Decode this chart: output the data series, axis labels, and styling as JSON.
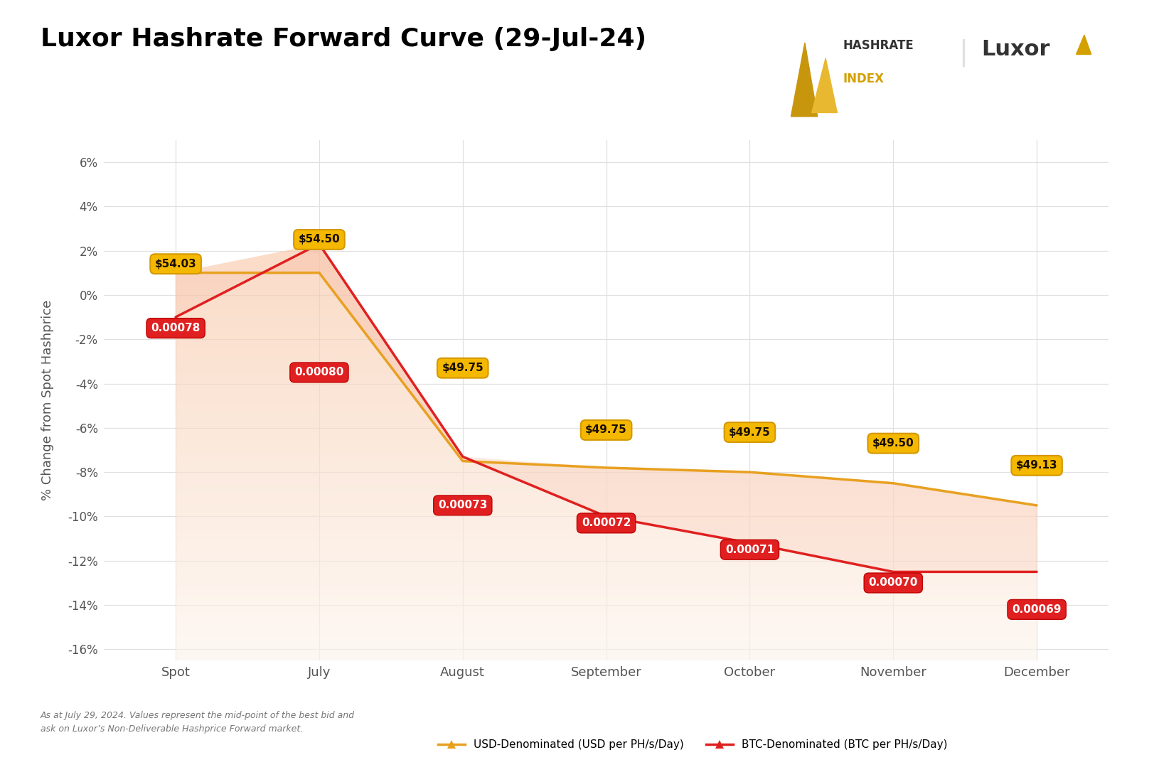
{
  "title": "Luxor Hashrate Forward Curve (29-Jul-24)",
  "ylabel": "% Change from Spot Hashprice",
  "categories": [
    "Spot",
    "July",
    "August",
    "September",
    "October",
    "November",
    "December"
  ],
  "usd_pct": [
    1.0,
    1.0,
    -7.5,
    -7.8,
    -8.0,
    -8.5,
    -9.5
  ],
  "btc_pct": [
    -1.0,
    2.3,
    -7.3,
    -10.0,
    -11.2,
    -12.5,
    -12.5
  ],
  "usd_labels": [
    "$54.03",
    "$54.50",
    "$49.75",
    "$49.75",
    "$49.75",
    "$49.50",
    "$49.13"
  ],
  "btc_labels": [
    "0.00078",
    "0.00080",
    "0.00073",
    "0.00072",
    "0.00071",
    "0.00070",
    "0.00069"
  ],
  "usd_label_y_offset": [
    1.4,
    2.5,
    -3.3,
    -6.1,
    -6.2,
    -6.7,
    -7.7
  ],
  "btc_label_y_offset": [
    -1.5,
    -3.5,
    -9.5,
    -10.3,
    -11.5,
    -13.0,
    -14.2
  ],
  "usd_color": "#E8A020",
  "btc_color": "#E02020",
  "usd_label_bg": "#F0B429",
  "fill_color_top": "#F5C5A0",
  "fill_color_bot": "#FDF0E8",
  "ylim": [
    -16.5,
    7.0
  ],
  "yticks": [
    -16,
    -14,
    -12,
    -10,
    -8,
    -6,
    -4,
    -2,
    0,
    2,
    4,
    6
  ],
  "background_color": "#FFFFFF",
  "grid_color": "#E0E0E0",
  "footnote_line1": "As at July 29, 2024. Values represent the mid-point of the best bid and",
  "footnote_line2": "ask on Luxor’s Non-Deliverable Hashprice Forward market.",
  "legend_usd": "USD-Denominated (USD per PH/s/Day)",
  "legend_btc": "BTC-Denominated (BTC per PH/s/Day)"
}
